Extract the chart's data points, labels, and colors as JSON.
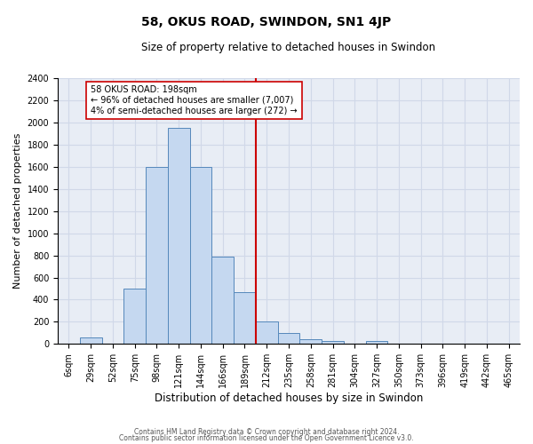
{
  "title": "58, OKUS ROAD, SWINDON, SN1 4JP",
  "subtitle": "Size of property relative to detached houses in Swindon",
  "xlabel": "Distribution of detached houses by size in Swindon",
  "ylabel": "Number of detached properties",
  "bar_color": "#c5d8f0",
  "bar_edge_color": "#5588bb",
  "background_color": "#e8edf5",
  "grid_color": "#d0d8e8",
  "bin_labels": [
    "6sqm",
    "29sqm",
    "52sqm",
    "75sqm",
    "98sqm",
    "121sqm",
    "144sqm",
    "166sqm",
    "189sqm",
    "212sqm",
    "235sqm",
    "258sqm",
    "281sqm",
    "304sqm",
    "327sqm",
    "350sqm",
    "373sqm",
    "396sqm",
    "419sqm",
    "442sqm",
    "465sqm"
  ],
  "bar_heights": [
    0,
    60,
    0,
    500,
    1600,
    1950,
    1600,
    790,
    470,
    200,
    100,
    40,
    30,
    0,
    25,
    0,
    0,
    0,
    0,
    0,
    0
  ],
  "vline_index": 9.0,
  "vline_color": "#cc0000",
  "annotation_text": "58 OKUS ROAD: 198sqm\n← 96% of detached houses are smaller (7,007)\n4% of semi-detached houses are larger (272) →",
  "annotation_box_color": "#ffffff",
  "annotation_box_edge_color": "#cc0000",
  "ylim": [
    0,
    2400
  ],
  "yticks": [
    0,
    200,
    400,
    600,
    800,
    1000,
    1200,
    1400,
    1600,
    1800,
    2000,
    2200,
    2400
  ],
  "footnote1": "Contains HM Land Registry data © Crown copyright and database right 2024.",
  "footnote2": "Contains public sector information licensed under the Open Government Licence v3.0.",
  "title_fontsize": 10,
  "subtitle_fontsize": 8.5,
  "ylabel_fontsize": 8,
  "xlabel_fontsize": 8.5,
  "tick_fontsize": 7,
  "annot_fontsize": 7,
  "footnote_fontsize": 5.5
}
